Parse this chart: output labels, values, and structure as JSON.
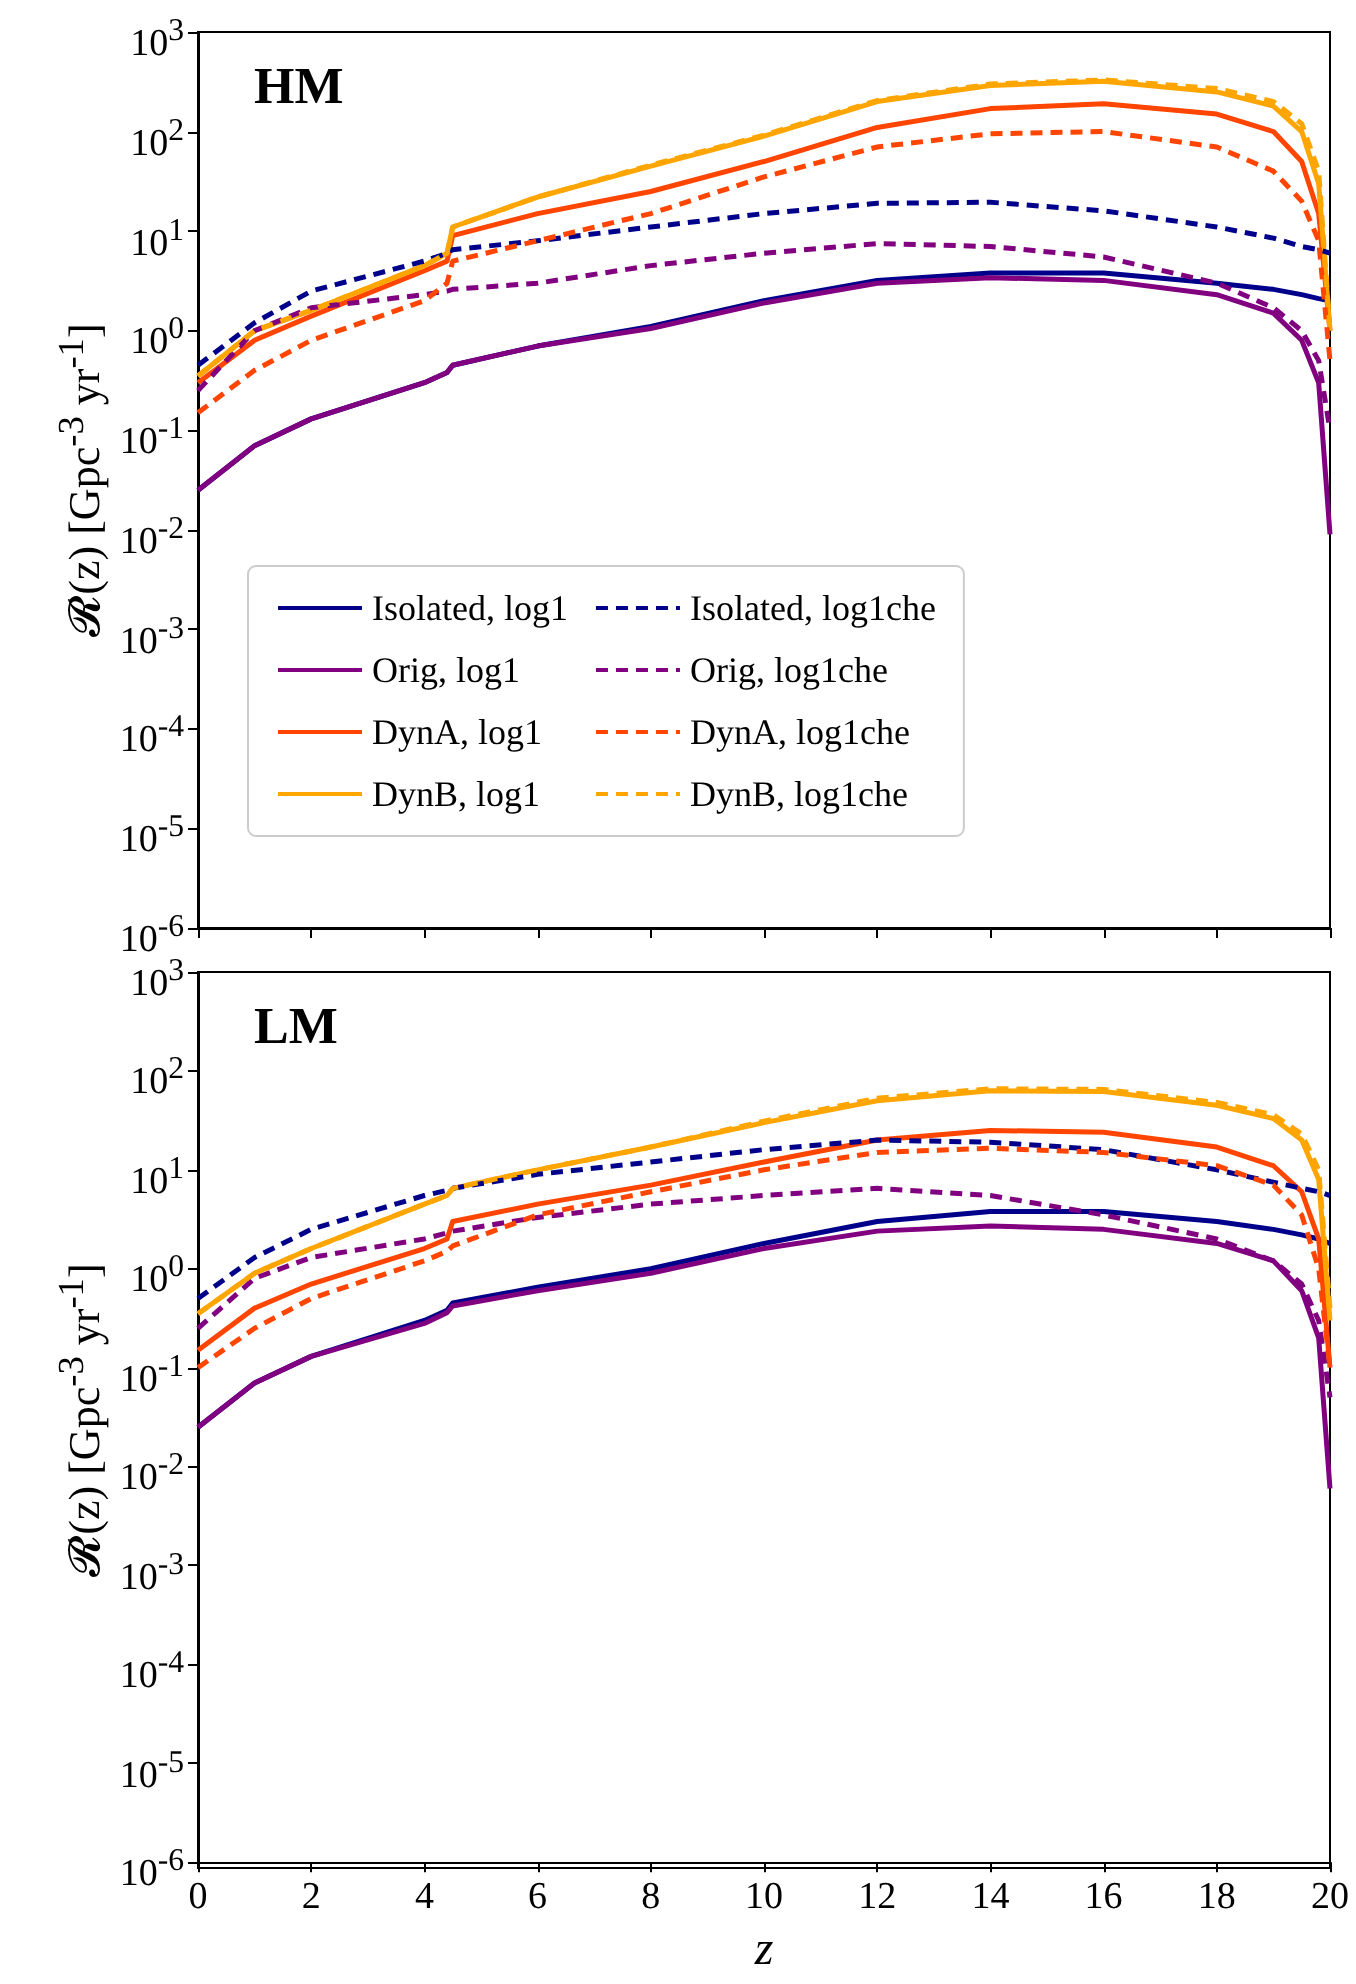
{
  "chart_data": [
    {
      "type": "line",
      "title": "HM",
      "ylabel": "𝓡(z) [Gpc$^{-3}$ yr$^{-1}$]",
      "log": "y",
      "legend": "bottom left",
      "marker": "none",
      "grid": false,
      "tick_labels": "y",
      "x": [
        0,
        1,
        2,
        4,
        4.4,
        4.5,
        6,
        8,
        10,
        12,
        14,
        16,
        18,
        19,
        19.5,
        19.8,
        20
      ],
      "xlim": [
        0,
        20
      ],
      "xticks": [
        0,
        2,
        4,
        6,
        8,
        10,
        12,
        14,
        16,
        18,
        20
      ],
      "ylim": [
        1e-06,
        1000
      ],
      "yticks": [
        {
          "value": 1e-06,
          "label": "10$^{-6}$"
        },
        {
          "value": 1e-05,
          "label": "10$^{-5}$"
        },
        {
          "value": 0.0001,
          "label": "10$^{-4}$"
        },
        {
          "value": 0.001,
          "label": "10$^{-3}$"
        },
        {
          "value": 0.01,
          "label": "10$^{-2}$"
        },
        {
          "value": 0.1,
          "label": "10$^{-1}$"
        },
        {
          "value": 1,
          "label": "10$^{0}$"
        },
        {
          "value": 10,
          "label": "10$^{1}$"
        },
        {
          "value": 100,
          "label": "10$^{2}$"
        },
        {
          "value": 1000,
          "label": "10$^{3}$"
        }
      ],
      "series": [
        {
          "name": "Isolated, log1",
          "color": "#00008b",
          "line_style": "solid",
          "values": [
            0.025,
            0.07,
            0.13,
            0.3,
            0.38,
            0.45,
            0.7,
            1.1,
            2,
            3.2,
            3.8,
            3.8,
            3,
            2.6,
            2.3,
            2.1,
            2
          ]
        },
        {
          "name": "Orig, log1",
          "color": "#800080",
          "line_style": "solid",
          "values": [
            0.025,
            0.07,
            0.13,
            0.3,
            0.38,
            0.45,
            0.7,
            1.05,
            1.9,
            3,
            3.4,
            3.2,
            2.3,
            1.5,
            0.8,
            0.3,
            0.009
          ]
        },
        {
          "name": "DynA, log1",
          "color": "#ff4500",
          "line_style": "solid",
          "values": [
            0.3,
            0.8,
            1.4,
            4,
            5,
            9,
            15,
            25,
            50,
            110,
            170,
            190,
            150,
            100,
            50,
            15,
            1
          ]
        },
        {
          "name": "DynB, log1",
          "color": "#ffa500",
          "line_style": "solid",
          "values": [
            0.35,
            1,
            1.6,
            4.5,
            6,
            11,
            22,
            45,
            90,
            200,
            290,
            320,
            250,
            180,
            100,
            30,
            1
          ]
        },
        {
          "name": "Isolated, log1che",
          "color": "#00008b",
          "line_style": "dashed",
          "values": [
            0.45,
            1.2,
            2.5,
            5,
            6,
            6.5,
            8,
            11,
            15,
            19,
            19.5,
            16,
            11,
            8.5,
            7,
            6.5,
            6
          ]
        },
        {
          "name": "Orig, log1che",
          "color": "#800080",
          "line_style": "dashed",
          "values": [
            0.25,
            1,
            1.7,
            2.3,
            2.5,
            2.6,
            3,
            4.5,
            6,
            7.5,
            7,
            5.5,
            3,
            1.7,
            1,
            0.5,
            0.1
          ]
        },
        {
          "name": "DynA, log1che",
          "color": "#ff4500",
          "line_style": "dashed",
          "values": [
            0.15,
            0.4,
            0.8,
            2,
            3,
            5,
            8,
            15,
            35,
            70,
            95,
            100,
            70,
            40,
            20,
            8,
            0.5
          ]
        },
        {
          "name": "DynB, log1che",
          "color": "#ffa500",
          "line_style": "dashed",
          "values": [
            0.35,
            1,
            1.6,
            4.5,
            6,
            11,
            22,
            46,
            92,
            205,
            300,
            330,
            270,
            200,
            120,
            40,
            1
          ]
        }
      ]
    },
    {
      "type": "line",
      "title": "LM",
      "xlabel": "z",
      "ylabel": "𝓡(z) [Gpc$^{-3}$ yr$^{-1}$]",
      "log": "y",
      "legend": false,
      "marker": "none",
      "grid": false,
      "x": [
        0,
        1,
        2,
        4,
        4.4,
        4.5,
        6,
        8,
        10,
        12,
        14,
        16,
        18,
        19,
        19.5,
        19.8,
        20
      ],
      "xlim": [
        0,
        20
      ],
      "xticks": [
        0,
        2,
        4,
        6,
        8,
        10,
        12,
        14,
        16,
        18,
        20
      ],
      "ylim": [
        1e-06,
        1000
      ],
      "yticks": [
        {
          "value": 1e-06,
          "label": "10$^{-6}$"
        },
        {
          "value": 1e-05,
          "label": "10$^{-5}$"
        },
        {
          "value": 0.0001,
          "label": "10$^{-4}$"
        },
        {
          "value": 0.001,
          "label": "10$^{-3}$"
        },
        {
          "value": 0.01,
          "label": "10$^{-2}$"
        },
        {
          "value": 0.1,
          "label": "10$^{-1}$"
        },
        {
          "value": 1,
          "label": "10$^{0}$"
        },
        {
          "value": 10,
          "label": "10$^{1}$"
        },
        {
          "value": 100,
          "label": "10$^{2}$"
        },
        {
          "value": 1000,
          "label": "10$^{3}$"
        }
      ],
      "series": [
        {
          "color": "#00008b",
          "line_style": "solid",
          "values": [
            0.025,
            0.07,
            0.13,
            0.3,
            0.38,
            0.45,
            0.65,
            1,
            1.8,
            3,
            3.8,
            3.8,
            3,
            2.5,
            2.2,
            2,
            1.8
          ]
        },
        {
          "color": "#800080",
          "line_style": "solid",
          "values": [
            0.025,
            0.07,
            0.13,
            0.28,
            0.36,
            0.42,
            0.6,
            0.9,
            1.6,
            2.4,
            2.7,
            2.5,
            1.8,
            1.2,
            0.6,
            0.2,
            0.006
          ]
        },
        {
          "color": "#ff4500",
          "line_style": "solid",
          "values": [
            0.15,
            0.4,
            0.7,
            1.6,
            2,
            3,
            4.5,
            7,
            12,
            20,
            25,
            24,
            17,
            11,
            6,
            2,
            0.1
          ]
        },
        {
          "color": "#ffa500",
          "line_style": "solid",
          "values": [
            0.35,
            0.9,
            1.6,
            4.5,
            5.5,
            6.5,
            10,
            17,
            30,
            50,
            63,
            62,
            45,
            33,
            20,
            8,
            0.3
          ]
        },
        {
          "color": "#00008b",
          "line_style": "dashed",
          "values": [
            0.5,
            1.3,
            2.5,
            5.5,
            6.2,
            6.5,
            9,
            12,
            16,
            20,
            19,
            16,
            10,
            7.5,
            6.5,
            6,
            5.5
          ]
        },
        {
          "color": "#800080",
          "line_style": "dashed",
          "values": [
            0.25,
            0.8,
            1.3,
            2,
            2.3,
            2.4,
            3.3,
            4.5,
            5.5,
            6.5,
            5.5,
            3.5,
            2,
            1.2,
            0.7,
            0.3,
            0.05
          ]
        },
        {
          "color": "#ff4500",
          "line_style": "dashed",
          "values": [
            0.1,
            0.25,
            0.5,
            1.2,
            1.5,
            1.7,
            3.5,
            6,
            10,
            15,
            16.5,
            15,
            11,
            7,
            3.5,
            1,
            0.1
          ]
        },
        {
          "color": "#ffa500",
          "line_style": "dashed",
          "values": [
            0.35,
            0.9,
            1.6,
            4.5,
            5.5,
            6.5,
            10,
            17,
            31,
            53,
            66,
            65,
            48,
            36,
            23,
            10,
            0.4
          ]
        }
      ]
    }
  ]
}
